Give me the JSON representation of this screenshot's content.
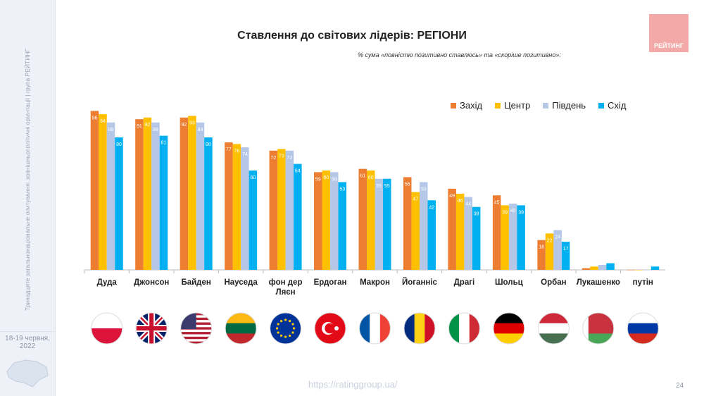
{
  "sidebar": {
    "caption": "Тринадцяте загальнонаціональне опитування: зовнішньополітичні орієнтації | група РЕЙТИНГ",
    "date": "18-19 червня, 2022"
  },
  "logo": "РЕЙТИНГ",
  "footer": {
    "url": "https://ratinggroup.ua/",
    "page": "24"
  },
  "colors": {
    "west": "#ed7d31",
    "center": "#ffc000",
    "south": "#b4c7e7",
    "east": "#00b0f0"
  },
  "chart_data": {
    "type": "bar",
    "title": "Ставлення до світових лідерів: РЕГІОНИ",
    "subtitle": "% сума «повністю позитивно ставлюсь» та «скоріше позитивно»:",
    "legend_position": "top-right",
    "ylim": [
      0,
      100
    ],
    "categories": [
      "Дуда",
      "Джонсон",
      "Байден",
      "Науседа",
      "фон дер Ляєн",
      "Ердоган",
      "Макрон",
      "Йоганніс",
      "Драгі",
      "Шольц",
      "Орбан",
      "Лукашенко",
      "путін"
    ],
    "series": [
      {
        "name": "Захід",
        "values": [
          96,
          91,
          92,
          77,
          72,
          59,
          61,
          56,
          49,
          45,
          18,
          1,
          0
        ]
      },
      {
        "name": "Центр",
        "values": [
          94,
          92,
          93,
          76,
          73,
          60,
          60,
          47,
          46,
          39,
          22,
          2,
          0
        ]
      },
      {
        "name": "Південь",
        "values": [
          89,
          89,
          89,
          74,
          72,
          59,
          55,
          53,
          44,
          40,
          24,
          3,
          0
        ]
      },
      {
        "name": "Схід",
        "values": [
          80,
          81,
          80,
          60,
          64,
          53,
          55,
          42,
          38,
          39,
          17,
          4,
          2
        ]
      }
    ],
    "show_labels_min": 10,
    "flags": [
      "poland",
      "uk",
      "usa",
      "lithuania",
      "eu",
      "turkey",
      "france",
      "romania",
      "italy",
      "germany",
      "hungary",
      "belarus",
      "russia"
    ]
  }
}
